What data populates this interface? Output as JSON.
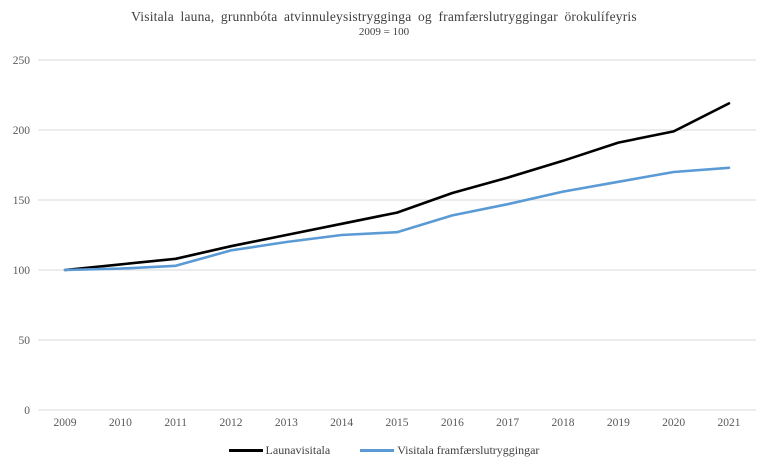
{
  "chart": {
    "title": "Visitala launa, grunnbóta atvinnuleysistrygginga og framfærslutryggingar örokulífeyris",
    "subtitle": "2009 = 100"
  },
  "chart_data": {
    "type": "line",
    "categories": [
      "2009",
      "2010",
      "2011",
      "2012",
      "2013",
      "2014",
      "2015",
      "2016",
      "2017",
      "2018",
      "2019",
      "2020",
      "2021"
    ],
    "series": [
      {
        "name": "Launavisitala",
        "color": "#000000",
        "values": [
          100,
          104,
          108,
          117,
          125,
          133,
          141,
          155,
          166,
          178,
          191,
          199,
          219
        ]
      },
      {
        "name": "Visitala framfærslutryggingar",
        "color": "#5b9bd5",
        "values": [
          100,
          101,
          103,
          114,
          120,
          125,
          127,
          139,
          147,
          156,
          163,
          170,
          173
        ]
      }
    ],
    "title": "Visitala launa, grunnbóta atvinnuleysistrygginga og framfærslutryggingar örokulífeyris",
    "subtitle": "2009 = 100",
    "xlabel": "",
    "ylabel": "",
    "ylim": [
      0,
      250
    ],
    "yticks": [
      0,
      50,
      100,
      150,
      200,
      250
    ],
    "grid": "horizontal",
    "legend_position": "bottom",
    "gridline_color": "#d9d9d9",
    "tick_color": "#595959"
  }
}
